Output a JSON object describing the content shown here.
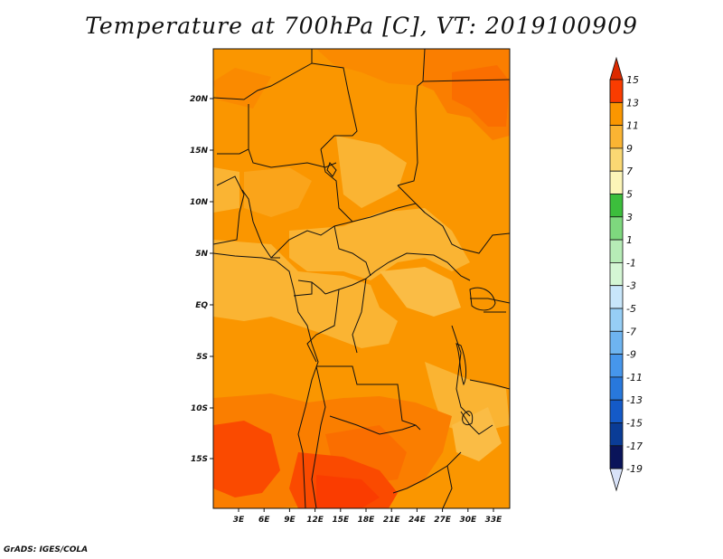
{
  "title": "Temperature at 700hPa [C], VT: 2019100909",
  "credit": "GrADS: IGES/COLA",
  "map": {
    "lon_ticks": [
      "3E",
      "6E",
      "9E",
      "12E",
      "15E",
      "18E",
      "21E",
      "24E",
      "27E",
      "30E",
      "33E"
    ],
    "lat_ticks": [
      "20N",
      "15N",
      "10N",
      "5N",
      "EQ",
      "5S",
      "10S",
      "15S"
    ]
  },
  "colorbar": {
    "labels": [
      "15",
      "13",
      "11",
      "9",
      "7",
      "5",
      "3",
      "1",
      "-1",
      "-3",
      "-5",
      "-7",
      "-9",
      "-11",
      "-13",
      "-15",
      "-17",
      "-19"
    ],
    "colors": [
      "#fa3c00",
      "#fa6e00",
      "#fa9600",
      "#fab433",
      "#fad873",
      "#fcf5b8",
      "#3cbe3c",
      "#7ed87e",
      "#b6ecb6",
      "#d4f6d4",
      "#c8e6fa",
      "#96cef5",
      "#6eb4f0",
      "#4696eb",
      "#2878dc",
      "#145ac8",
      "#0a3c96",
      "#0a145a"
    ],
    "top_arrow_color": "#dc2a00",
    "bottom_arrow_color": "#d8e2f8"
  }
}
